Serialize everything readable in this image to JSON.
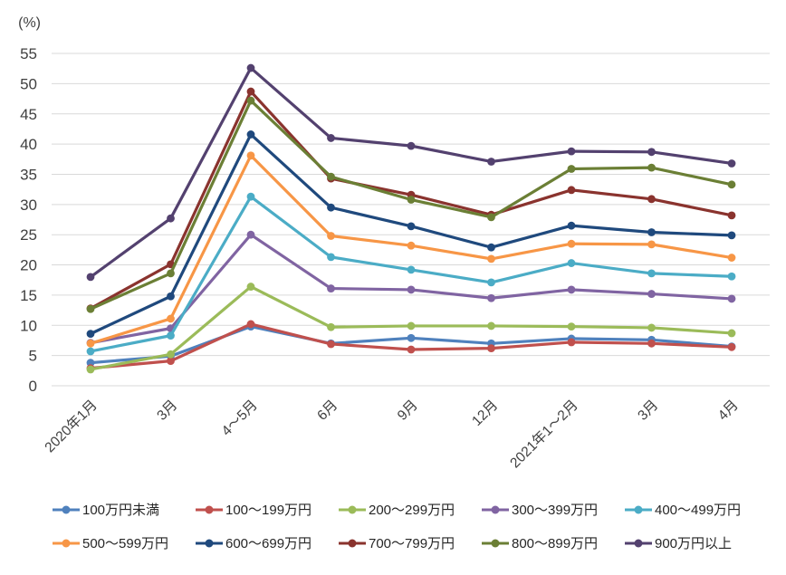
{
  "chart_data": {
    "type": "line",
    "title": "",
    "unit_label": "(%)",
    "xlabel": "",
    "ylabel": "(%)",
    "ylim": [
      0,
      55
    ],
    "y_axis": {
      "min": 0,
      "max": 55,
      "step": 5
    },
    "grid": true,
    "legend_position": "bottom",
    "categories": [
      "2020年1月",
      "3月",
      "4～5月",
      "6月",
      "9月",
      "12月",
      "2021年1～2月",
      "3月",
      "4月"
    ],
    "series": [
      {
        "name": "100万円未満",
        "color": "#4F81BD",
        "values": [
          3.8,
          4.9,
          9.8,
          7.0,
          7.9,
          7.0,
          7.8,
          7.6,
          6.5
        ]
      },
      {
        "name": "100～199万円",
        "color": "#C0504D",
        "values": [
          2.9,
          4.1,
          10.2,
          6.9,
          6.0,
          6.2,
          7.2,
          7.0,
          6.4
        ]
      },
      {
        "name": "200～299万円",
        "color": "#9BBB59",
        "values": [
          2.7,
          5.2,
          16.4,
          9.7,
          9.9,
          9.9,
          9.8,
          9.6,
          8.7
        ]
      },
      {
        "name": "300～399万円",
        "color": "#8064A2",
        "values": [
          7.1,
          9.5,
          25.0,
          16.1,
          15.9,
          14.5,
          15.9,
          15.2,
          14.4
        ]
      },
      {
        "name": "400～499万円",
        "color": "#4BACC6",
        "values": [
          5.7,
          8.3,
          31.3,
          21.3,
          19.2,
          17.1,
          20.3,
          18.6,
          18.1
        ]
      },
      {
        "name": "500～599万円",
        "color": "#F79646",
        "values": [
          7.0,
          11.1,
          38.1,
          24.8,
          23.2,
          21.0,
          23.5,
          23.4,
          21.2
        ]
      },
      {
        "name": "600～699万円",
        "color": "#1F497D",
        "values": [
          8.6,
          14.8,
          41.6,
          29.5,
          26.4,
          22.9,
          26.5,
          25.4,
          24.9
        ]
      },
      {
        "name": "700～799万円",
        "color": "#8A332E",
        "values": [
          12.8,
          20.1,
          48.7,
          34.3,
          31.6,
          28.3,
          32.4,
          30.9,
          28.2
        ]
      },
      {
        "name": "800～899万円",
        "color": "#6B7F35",
        "values": [
          12.7,
          18.6,
          47.2,
          34.6,
          30.8,
          27.9,
          35.9,
          36.1,
          33.3
        ]
      },
      {
        "name": "900万円以上",
        "color": "#53416F",
        "values": [
          18.0,
          27.7,
          52.6,
          41.0,
          39.7,
          37.1,
          38.8,
          38.7,
          36.8
        ]
      }
    ]
  }
}
